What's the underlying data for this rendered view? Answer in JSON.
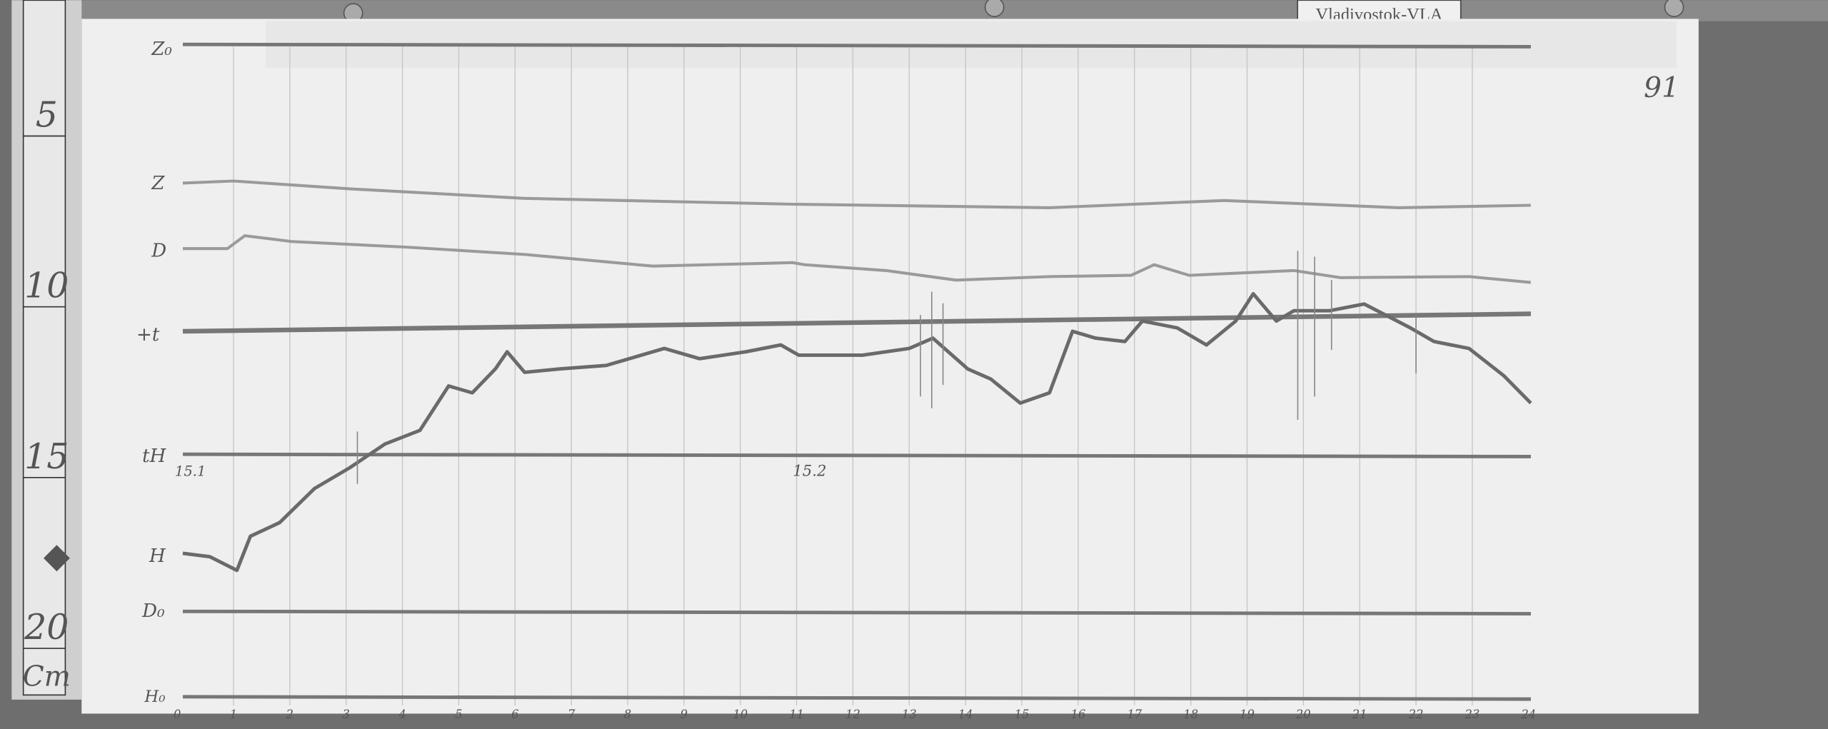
{
  "station_label": "Vladivostok-VLA",
  "sheet_number": "91",
  "ruler": {
    "unit": "Cm",
    "marks": [
      "5",
      "10",
      "15",
      "20"
    ]
  },
  "row_labels": {
    "z0": "Z₀",
    "z": "Z",
    "d": "D",
    "t": "+t",
    "th": "tH",
    "h": "H",
    "d0": "D₀",
    "h0": "H₀"
  },
  "time_marks": {
    "start": "15.1",
    "mid": "15.2"
  },
  "colors": {
    "paper": "#efefef",
    "trace": "#6a6a6a",
    "light_trace": "#9a9a9a",
    "background": "#6e6e6e"
  },
  "chart_data": {
    "type": "line",
    "title": "",
    "xlabel": "",
    "ylabel": "",
    "x_unit": "hour",
    "y_unit": "cm",
    "xlim": [
      0,
      24
    ],
    "ylim": [
      2,
      23
    ],
    "x_ticks": [
      "0",
      "1",
      "2",
      "3",
      "4",
      "5",
      "6",
      "7",
      "8",
      "9",
      "10",
      "11",
      "12",
      "13",
      "14",
      "15",
      "16",
      "17",
      "18",
      "19",
      "20",
      "21",
      "22",
      "23",
      "24"
    ],
    "grid": true,
    "series": [
      {
        "name": "Z",
        "x": [
          0.1,
          1.0,
          3.06,
          6.17,
          10.93,
          15.49,
          18.59,
          21.7,
          24.04
        ],
        "y": [
          7.06,
          7.0,
          7.23,
          7.51,
          7.68,
          7.78,
          7.57,
          7.78,
          7.71
        ]
      },
      {
        "name": "D",
        "x": [
          0.1,
          0.89,
          1.2,
          2.03,
          4.1,
          6.17,
          8.45,
          10.93,
          11.14,
          12.59,
          13.83,
          15.49,
          16.94,
          17.35,
          17.97,
          19.83,
          20.66,
          22.94,
          24.04
        ],
        "y": [
          8.98,
          8.98,
          8.6,
          8.77,
          8.94,
          9.15,
          9.49,
          9.39,
          9.45,
          9.62,
          9.9,
          9.8,
          9.76,
          9.45,
          9.76,
          9.62,
          9.83,
          9.8,
          9.97
        ]
      },
      {
        "name": "H",
        "x": [
          0.1,
          0.58,
          1.06,
          1.3,
          1.82,
          2.44,
          3.06,
          3.69,
          4.31,
          4.82,
          5.24,
          5.65,
          5.86,
          6.17,
          6.79,
          7.62,
          8.65,
          9.28,
          10.1,
          10.72,
          11.04,
          12.17,
          13.0,
          13.42,
          14.04,
          14.45,
          14.97,
          15.49,
          15.9,
          16.31,
          16.83,
          17.14,
          17.76,
          18.28,
          18.8,
          19.11,
          19.52,
          19.83,
          20.46,
          21.08,
          21.9,
          22.32,
          22.94,
          23.56,
          24.04
        ],
        "y": [
          17.9,
          18.0,
          18.4,
          17.4,
          17.0,
          16.0,
          15.4,
          14.7,
          14.3,
          13.0,
          13.2,
          12.5,
          12.0,
          12.6,
          12.5,
          12.4,
          11.9,
          12.2,
          12.0,
          11.8,
          12.1,
          12.1,
          11.9,
          11.6,
          12.5,
          12.8,
          13.5,
          13.2,
          11.4,
          11.6,
          11.7,
          11.1,
          11.3,
          11.8,
          11.1,
          10.3,
          11.1,
          10.8,
          10.8,
          10.6,
          11.3,
          11.7,
          11.9,
          12.7,
          13.5
        ]
      }
    ],
    "baselines": [
      {
        "name": "Z₀",
        "y": 3.0
      },
      {
        "name": "+t",
        "y": 11.4
      },
      {
        "name": "tH",
        "y": 15.0
      },
      {
        "name": "D₀",
        "y": 19.6
      },
      {
        "name": "H₀",
        "y": 22.1
      }
    ]
  }
}
